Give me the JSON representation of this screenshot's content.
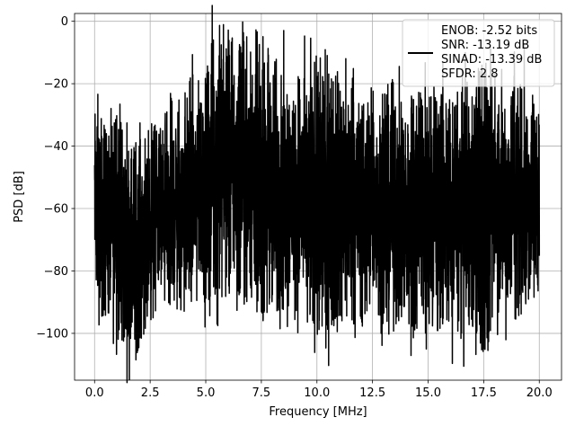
{
  "chart_data": {
    "type": "line",
    "title": "",
    "xlabel": "Frequency [MHz]",
    "ylabel": "PSD [dB]",
    "xlim": [
      -0.9,
      21.0
    ],
    "ylim": [
      -115,
      2.5
    ],
    "x_ticks": [
      0.0,
      2.5,
      5.0,
      7.5,
      10.0,
      12.5,
      15.0,
      17.5,
      20.0
    ],
    "x_tick_labels": [
      "0.0",
      "2.5",
      "5.0",
      "7.5",
      "10.0",
      "12.5",
      "15.0",
      "17.5",
      "20.0"
    ],
    "y_ticks": [
      0,
      -20,
      -40,
      -60,
      -80,
      -100
    ],
    "y_tick_labels": [
      "0",
      "−20",
      "−40",
      "−60",
      "−80",
      "−100"
    ],
    "grid": true,
    "legend_position": "top-right",
    "legend": {
      "lines": [
        "ENOB: -2.52 bits",
        "SNR: -13.19 dB",
        "SINAD: -13.39 dB",
        "SFDR: 2.8"
      ]
    },
    "series": [
      {
        "color": "#000000",
        "style": "dense noise spectrum",
        "x_range": [
          0.0,
          20.0
        ],
        "samples": 4000,
        "envelope": {
          "x": [
            0.0,
            0.05,
            0.5,
            1.0,
            1.6,
            2.5,
            3.0,
            4.0,
            5.0,
            5.4,
            6.0,
            7.0,
            7.5,
            9.0,
            10.0,
            11.0,
            12.5,
            13.5,
            15.0,
            16.0,
            17.0,
            17.5,
            18.0,
            19.0,
            20.0
          ],
          "upper": [
            -32,
            -23,
            -35,
            -30,
            -38,
            -34,
            -32,
            -22,
            -15,
            -2,
            -2,
            -8,
            -10,
            -16,
            -15,
            -17,
            -20,
            -24,
            -22,
            -24,
            -18,
            -13,
            -16,
            -17,
            -28
          ],
          "lower": [
            -80,
            -95,
            -95,
            -100,
            -110,
            -95,
            -92,
            -91,
            -90,
            -89,
            -88,
            -88,
            -94,
            -92,
            -102,
            -96,
            -98,
            -96,
            -101,
            -97,
            -99,
            -108,
            -94,
            -96,
            -85
          ]
        }
      }
    ]
  }
}
